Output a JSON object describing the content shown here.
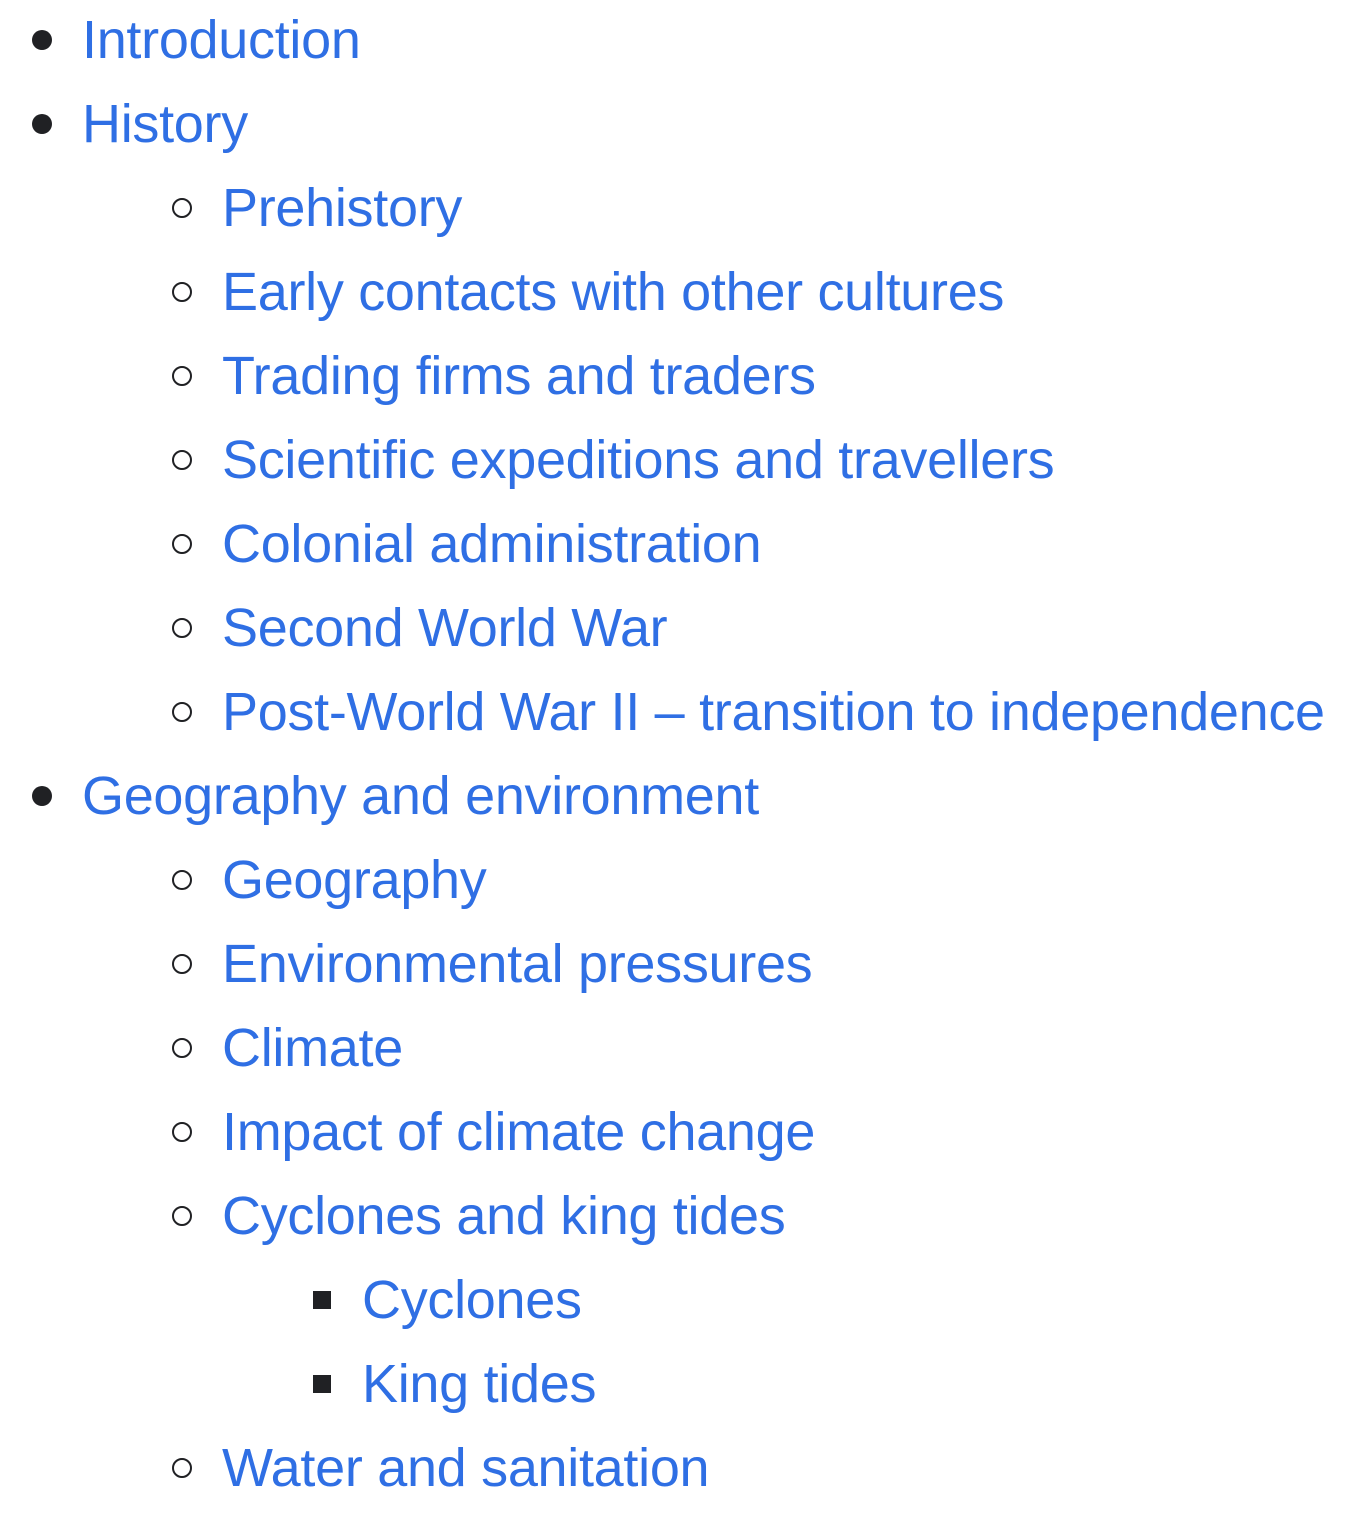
{
  "toc": {
    "items": [
      {
        "label": "Introduction"
      },
      {
        "label": "History"
      },
      {
        "label": "Prehistory"
      },
      {
        "label": "Early contacts with other cultures"
      },
      {
        "label": "Trading firms and traders"
      },
      {
        "label": "Scientific expeditions and travellers"
      },
      {
        "label": "Colonial administration"
      },
      {
        "label": "Second World War"
      },
      {
        "label": "Post-World War II – transition to independence"
      },
      {
        "label": "Geography and environment"
      },
      {
        "label": "Geography"
      },
      {
        "label": "Environmental pressures"
      },
      {
        "label": "Climate"
      },
      {
        "label": "Impact of climate change"
      },
      {
        "label": "Cyclones and king tides"
      },
      {
        "label": "Cyclones"
      },
      {
        "label": "King tides"
      },
      {
        "label": "Water and sanitation"
      }
    ]
  },
  "colors": {
    "link": "#2f6fe4",
    "bullet": "#202124",
    "background": "#ffffff"
  }
}
